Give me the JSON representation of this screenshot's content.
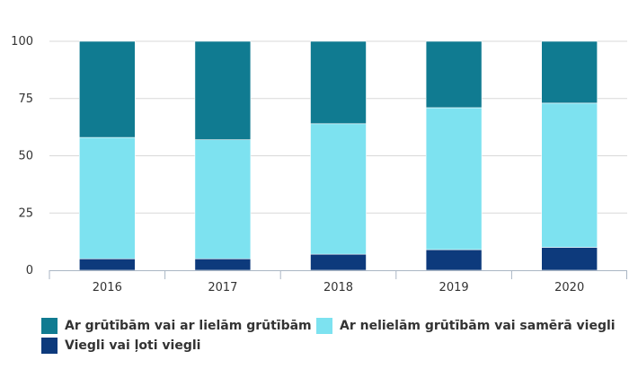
{
  "chart_data": {
    "type": "bar",
    "stacked": true,
    "categories": [
      "2016",
      "2017",
      "2018",
      "2019",
      "2020"
    ],
    "series": [
      {
        "name": "Viegli vai ļoti viegli",
        "color": "#0d3a7c",
        "values": [
          5,
          5,
          7,
          9,
          10
        ]
      },
      {
        "name": "Ar nelielām grūtībām vai samērā viegli",
        "color": "#7de2f0",
        "values": [
          53,
          52,
          57,
          62,
          63
        ]
      },
      {
        "name": "Ar grūtībām vai ar lielām grūtībām",
        "color": "#107b91",
        "values": [
          42,
          43,
          36,
          29,
          27
        ]
      }
    ],
    "yticks": [
      "0",
      "25",
      "50",
      "75",
      "100"
    ],
    "ylim": [
      0,
      100
    ],
    "title": "",
    "xlabel": "",
    "ylabel": "",
    "legend_position": "bottom"
  }
}
